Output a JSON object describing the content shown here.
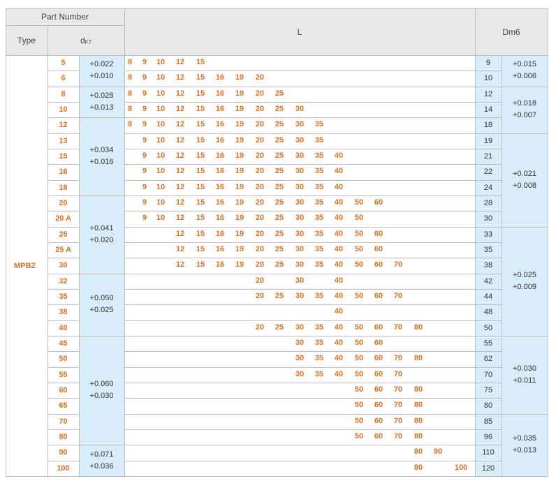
{
  "header": {
    "part_number": "Part Number",
    "type": "Type",
    "d": "d",
    "d_sub": "F7",
    "l": "L",
    "dm6": "Dm6"
  },
  "type_value": "MPBZ",
  "l_columns": [
    "8",
    "9",
    "10",
    "12",
    "15",
    "16",
    "19",
    "20",
    "25",
    "30",
    "35",
    "40",
    "50",
    "60",
    "70",
    "80",
    "90",
    "100"
  ],
  "d_values": [
    "5",
    "6",
    "8",
    "10",
    "12",
    "13",
    "15",
    "16",
    "18",
    "20",
    "20 A",
    "25",
    "25 A",
    "30",
    "32",
    "35",
    "38",
    "40",
    "45",
    "50",
    "55",
    "60",
    "65",
    "70",
    "80",
    "90",
    "100"
  ],
  "d_tolerances": [
    {
      "upper": "+0.022",
      "lower": "+0.010",
      "rows": [
        "5",
        "6"
      ]
    },
    {
      "upper": "+0.028",
      "lower": "+0.013",
      "rows": [
        "8",
        "10"
      ]
    },
    {
      "upper": "+0.034",
      "lower": "+0.016",
      "rows": [
        "12",
        "13",
        "15",
        "16",
        "18"
      ]
    },
    {
      "upper": "+0.041",
      "lower": "+0.020",
      "rows": [
        "20",
        "20 A",
        "25",
        "25 A",
        "30"
      ]
    },
    {
      "upper": "+0.050",
      "lower": "+0.025",
      "rows": [
        "32",
        "35",
        "38",
        "40"
      ]
    },
    {
      "upper": "+0.060",
      "lower": "+0.030",
      "rows": [
        "45",
        "50",
        "55",
        "60",
        "65",
        "70",
        "80"
      ]
    },
    {
      "upper": "+0.071",
      "lower": "+0.036",
      "rows": [
        "90",
        "100"
      ]
    }
  ],
  "dm6_values": [
    "9",
    "10",
    "12",
    "14",
    "18",
    "19",
    "21",
    "22",
    "24",
    "28",
    "30",
    "33",
    "35",
    "38",
    "42",
    "44",
    "48",
    "50",
    "55",
    "62",
    "70",
    "75",
    "80",
    "85",
    "96",
    "110",
    "120"
  ],
  "dm6_tolerances": [
    {
      "upper": "+0.015",
      "lower": "+0.006",
      "rows": [
        "5",
        "6"
      ]
    },
    {
      "upper": "+0.018",
      "lower": "+0.007",
      "rows": [
        "8",
        "10",
        "12"
      ]
    },
    {
      "upper": "+0.021",
      "lower": "+0.008",
      "rows": [
        "13",
        "15",
        "16",
        "18",
        "20",
        "20 A"
      ]
    },
    {
      "upper": "+0.025",
      "lower": "+0.009",
      "rows": [
        "25",
        "25 A",
        "30",
        "32",
        "35",
        "38",
        "40"
      ]
    },
    {
      "upper": "+0.030",
      "lower": "+0.011",
      "rows": [
        "45",
        "50",
        "55",
        "60",
        "65"
      ]
    },
    {
      "upper": "+0.035",
      "lower": "+0.013",
      "rows": [
        "70",
        "80",
        "90",
        "100"
      ]
    }
  ],
  "l_values": [
    [
      "8",
      "9",
      "10",
      "12",
      "15"
    ],
    [
      "8",
      "9",
      "10",
      "12",
      "15",
      "16",
      "19",
      "20"
    ],
    [
      "8",
      "9",
      "10",
      "12",
      "15",
      "16",
      "19",
      "20",
      "25"
    ],
    [
      "8",
      "9",
      "10",
      "12",
      "15",
      "16",
      "19",
      "20",
      "25",
      "30"
    ],
    [
      "8",
      "9",
      "10",
      "12",
      "15",
      "16",
      "19",
      "20",
      "25",
      "30",
      "35"
    ],
    [
      "9",
      "10",
      "12",
      "15",
      "16",
      "19",
      "20",
      "25",
      "30",
      "35"
    ],
    [
      "9",
      "10",
      "12",
      "15",
      "16",
      "19",
      "20",
      "25",
      "30",
      "35",
      "40"
    ],
    [
      "9",
      "10",
      "12",
      "15",
      "16",
      "19",
      "20",
      "25",
      "30",
      "35",
      "40"
    ],
    [
      "9",
      "10",
      "12",
      "15",
      "16",
      "19",
      "20",
      "25",
      "30",
      "35",
      "40"
    ],
    [
      "9",
      "10",
      "12",
      "15",
      "16",
      "19",
      "20",
      "25",
      "30",
      "35",
      "40",
      "50",
      "60"
    ],
    [
      "9",
      "10",
      "12",
      "15",
      "16",
      "19",
      "20",
      "25",
      "30",
      "35",
      "40",
      "50"
    ],
    [
      "12",
      "15",
      "16",
      "19",
      "20",
      "25",
      "30",
      "35",
      "40",
      "50",
      "60"
    ],
    [
      "12",
      "15",
      "16",
      "19",
      "20",
      "25",
      "30",
      "35",
      "40",
      "50",
      "60"
    ],
    [
      "12",
      "15",
      "16",
      "19",
      "20",
      "25",
      "30",
      "35",
      "40",
      "50",
      "60",
      "70"
    ],
    [
      "20",
      "30",
      "40"
    ],
    [
      "20",
      "25",
      "30",
      "35",
      "40",
      "50",
      "60",
      "70"
    ],
    [
      "40"
    ],
    [
      "20",
      "25",
      "30",
      "35",
      "40",
      "50",
      "60",
      "70",
      "80"
    ],
    [
      "30",
      "35",
      "40",
      "50",
      "60"
    ],
    [
      "30",
      "35",
      "40",
      "50",
      "60",
      "70",
      "80"
    ],
    [
      "30",
      "35",
      "40",
      "50",
      "60",
      "70"
    ],
    [
      "50",
      "60",
      "70",
      "80"
    ],
    [
      "50",
      "60",
      "70",
      "80"
    ],
    [
      "50",
      "60",
      "70",
      "80"
    ],
    [
      "50",
      "60",
      "70",
      "80"
    ],
    [
      "80",
      "90"
    ],
    [
      "80",
      "100"
    ]
  ]
}
